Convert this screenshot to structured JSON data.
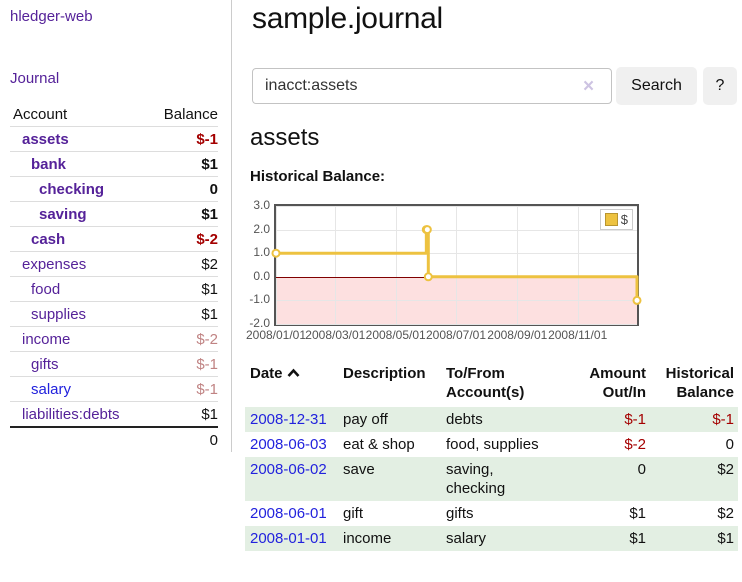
{
  "app": {
    "title": "hledger-web"
  },
  "sidebar": {
    "journal_link": "Journal",
    "accounts_table": {
      "account_header": "Account",
      "balance_header": "Balance",
      "rows": [
        {
          "account": "assets",
          "balance": "$-1",
          "indent": 1,
          "bold": true,
          "balance_style": "neg-strong",
          "link_style": "purple"
        },
        {
          "account": "bank",
          "balance": "$1",
          "indent": 2,
          "bold": true,
          "balance_style": "plain",
          "link_style": "purple"
        },
        {
          "account": "checking",
          "balance": "0",
          "indent": 3,
          "bold": true,
          "balance_style": "plain",
          "link_style": "purple"
        },
        {
          "account": "saving",
          "balance": "$1",
          "indent": 3,
          "bold": true,
          "balance_style": "plain",
          "link_style": "purple"
        },
        {
          "account": "cash",
          "balance": "$-2",
          "indent": 2,
          "bold": true,
          "balance_style": "neg-strong",
          "link_style": "purple"
        },
        {
          "account": "expenses",
          "balance": "$2",
          "indent": 1,
          "bold": false,
          "balance_style": "plain",
          "link_style": "purple"
        },
        {
          "account": "food",
          "balance": "$1",
          "indent": 2,
          "bold": false,
          "balance_style": "plain",
          "link_style": "purple"
        },
        {
          "account": "supplies",
          "balance": "$1",
          "indent": 2,
          "bold": false,
          "balance_style": "plain",
          "link_style": "purple"
        },
        {
          "account": "income",
          "balance": "$-2",
          "indent": 1,
          "bold": false,
          "balance_style": "neg-soft",
          "link_style": "purple"
        },
        {
          "account": "gifts",
          "balance": "$-1",
          "indent": 2,
          "bold": false,
          "balance_style": "neg-soft",
          "link_style": "purple"
        },
        {
          "account": "salary",
          "balance": "$-1",
          "indent": 2,
          "bold": false,
          "balance_style": "neg-soft",
          "link_style": "blue"
        },
        {
          "account": "liabilities:debts",
          "balance": "$1",
          "indent": 1,
          "bold": false,
          "balance_style": "plain",
          "link_style": "purple"
        }
      ],
      "total": "0"
    }
  },
  "header": {
    "title": "sample.journal"
  },
  "search": {
    "value": "inacct:assets",
    "clear_icon": "×",
    "button_label": "Search",
    "help_label": "?"
  },
  "register": {
    "heading": "assets",
    "chart_label": "Historical Balance:"
  },
  "chart_data": {
    "type": "line",
    "title": "Historical Balance",
    "steps": true,
    "x_range": {
      "min": "2008-01-01",
      "max": "2008-12-31"
    },
    "ylim": [
      -2,
      3
    ],
    "y_ticks": [
      {
        "value": 3.0,
        "label": "3.0"
      },
      {
        "value": 2.0,
        "label": "2.0"
      },
      {
        "value": 1.0,
        "label": "1.0"
      },
      {
        "value": 0.0,
        "label": "0.0"
      },
      {
        "value": -1.0,
        "label": "-1.0"
      },
      {
        "value": -2.0,
        "label": "-2.0"
      }
    ],
    "x_ticks": [
      {
        "date": "2008-01-01",
        "label": "2008/01/01"
      },
      {
        "date": "2008-03-01",
        "label": "2008/03/01"
      },
      {
        "date": "2008-05-01",
        "label": "2008/05/01"
      },
      {
        "date": "2008-07-01",
        "label": "2008/07/01"
      },
      {
        "date": "2008-09-01",
        "label": "2008/09/01"
      },
      {
        "date": "2008-11-01",
        "label": "2008/11/01"
      }
    ],
    "series": [
      {
        "name": "$",
        "color": "#edc240",
        "points": [
          {
            "date": "2008-01-01",
            "value": 1
          },
          {
            "date": "2008-06-01",
            "value": 2
          },
          {
            "date": "2008-06-02",
            "value": 2
          },
          {
            "date": "2008-06-03",
            "value": 0
          },
          {
            "date": "2008-12-31",
            "value": -1
          }
        ]
      }
    ],
    "legend": {
      "label": "$",
      "position": "top-right"
    },
    "grid": true,
    "negative_region": true,
    "zero_line_color": "#800000"
  },
  "transactions": {
    "headers": [
      {
        "lines": [
          "Date"
        ],
        "align": "left",
        "sort_indicator": "asc"
      },
      {
        "lines": [
          "Description"
        ],
        "align": "left"
      },
      {
        "lines": [
          "To/From",
          "Account(s)"
        ],
        "align": "left"
      },
      {
        "lines": [
          "Amount",
          "Out/In"
        ],
        "align": "right"
      },
      {
        "lines": [
          "Historical",
          "Balance"
        ],
        "align": "right"
      }
    ],
    "rows": [
      {
        "date": "2008-12-31",
        "description": "pay off",
        "accounts": [
          "debts"
        ],
        "amount": "$-1",
        "amount_negative": true,
        "balance": "$-1",
        "balance_negative": true,
        "shaded": true
      },
      {
        "date": "2008-06-03",
        "description": "eat & shop",
        "accounts": [
          "food, supplies"
        ],
        "amount": "$-2",
        "amount_negative": true,
        "balance": "0",
        "balance_negative": false,
        "shaded": false
      },
      {
        "date": "2008-06-02",
        "description": "save",
        "accounts": [
          "saving,",
          "checking"
        ],
        "amount": "0",
        "amount_negative": false,
        "balance": "$2",
        "balance_negative": false,
        "shaded": true
      },
      {
        "date": "2008-06-01",
        "description": "gift",
        "accounts": [
          "gifts"
        ],
        "amount": "$1",
        "amount_negative": false,
        "balance": "$2",
        "balance_negative": false,
        "shaded": false
      },
      {
        "date": "2008-01-01",
        "description": "income",
        "accounts": [
          "salary"
        ],
        "amount": "$1",
        "amount_negative": false,
        "balance": "$1",
        "balance_negative": false,
        "shaded": true
      }
    ]
  }
}
